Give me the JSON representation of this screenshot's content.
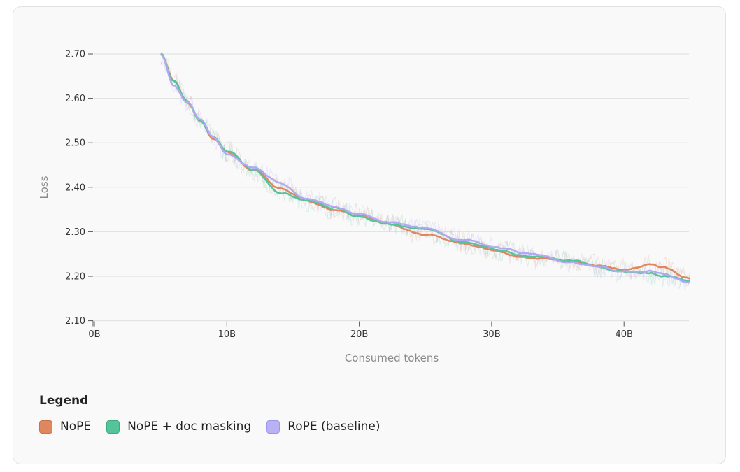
{
  "chart_data": {
    "type": "line",
    "title": "",
    "xlabel": "Consumed tokens",
    "ylabel": "Loss",
    "xlim": [
      0,
      45
    ],
    "ylim": [
      2.1,
      2.7
    ],
    "grid": true,
    "x_ticks": [
      "0B",
      "10B",
      "20B",
      "30B",
      "40B"
    ],
    "y_ticks": [
      "2.70",
      "2.60",
      "2.50",
      "2.40",
      "2.30",
      "2.20",
      "2.10"
    ],
    "legend_title": "Legend",
    "legend_position": "bottom-left",
    "x": [
      5,
      6,
      7,
      8,
      9,
      10,
      12,
      14,
      16,
      18,
      20,
      22,
      25,
      28,
      30,
      33,
      36,
      38,
      40,
      42,
      43,
      45
    ],
    "series": [
      {
        "name": "NoPE",
        "color": "#e0875e",
        "values": [
          2.7,
          2.64,
          2.59,
          2.55,
          2.51,
          2.48,
          2.44,
          2.395,
          2.37,
          2.35,
          2.34,
          2.315,
          2.295,
          2.275,
          2.26,
          2.24,
          2.235,
          2.225,
          2.215,
          2.225,
          2.22,
          2.195
        ]
      },
      {
        "name": "NoPE + doc masking",
        "color": "#55c49b",
        "values": [
          2.7,
          2.64,
          2.595,
          2.55,
          2.51,
          2.48,
          2.44,
          2.39,
          2.37,
          2.355,
          2.335,
          2.32,
          2.305,
          2.275,
          2.26,
          2.245,
          2.235,
          2.22,
          2.21,
          2.205,
          2.2,
          2.19
        ]
      },
      {
        "name": "RoPE (baseline)",
        "color": "#b2a9f2",
        "values": [
          2.7,
          2.63,
          2.59,
          2.55,
          2.51,
          2.475,
          2.445,
          2.41,
          2.375,
          2.355,
          2.34,
          2.32,
          2.305,
          2.28,
          2.265,
          2.25,
          2.23,
          2.22,
          2.21,
          2.21,
          2.205,
          2.19
        ]
      }
    ]
  },
  "legend": {
    "title": "Legend",
    "items": [
      {
        "label": "NoPE",
        "color": "#e0875e",
        "border": "#c9714a"
      },
      {
        "label": "NoPE + doc masking",
        "color": "#55c49b",
        "border": "#3fa983"
      },
      {
        "label": "RoPE (baseline)",
        "color": "#b9b1f5",
        "border": "#9f95ea"
      }
    ]
  }
}
